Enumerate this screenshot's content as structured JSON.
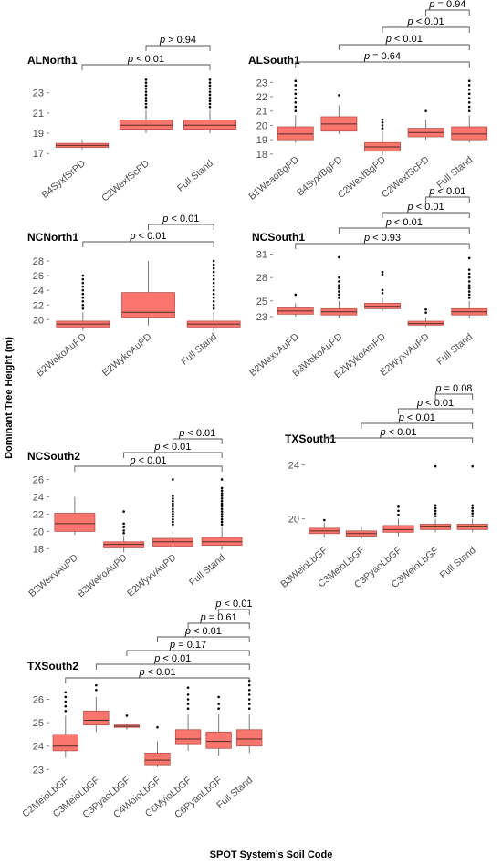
{
  "ylabel": "Dominant Tree Height (m)",
  "xlabel": "SPOT System’s Soil Code",
  "colors": {
    "box_fill": "#f8766d",
    "box_edge": "#b8524b",
    "whisker": "#7a7a7a",
    "outlier": "#000000",
    "bracket": "#555555"
  },
  "chart_data": [
    {
      "type": "box",
      "title": "ALNorth1",
      "ylim": [
        16.3,
        24.6
      ],
      "yticks": [
        17,
        19,
        21,
        23
      ],
      "categories": [
        "B4SyxfSrPD",
        "C2WexfScPD",
        "Full Stand"
      ],
      "boxes": [
        {
          "min": 17.4,
          "q1": 17.6,
          "median": 17.8,
          "q3": 18.0,
          "max": 18.4,
          "outliers": []
        },
        {
          "min": 19.0,
          "q1": 19.4,
          "median": 19.8,
          "q3": 20.3,
          "max": 21.3,
          "outliers": [
            21.6,
            21.9,
            22.2,
            22.5,
            22.8,
            23.1,
            23.4,
            23.7,
            24.0,
            24.3
          ]
        },
        {
          "min": 19.0,
          "q1": 19.4,
          "median": 19.8,
          "q3": 20.3,
          "max": 21.3,
          "outliers": [
            21.6,
            21.9,
            22.2,
            22.5,
            22.8,
            23.1,
            23.4,
            23.7,
            24.0,
            24.3
          ]
        }
      ],
      "comparisons": [
        {
          "from": 1,
          "to": 2,
          "label": "> 0.94"
        },
        {
          "from": 0,
          "to": 2,
          "label": "< 0.01"
        }
      ]
    },
    {
      "type": "box",
      "title": "ALSouth1",
      "ylim": [
        17.8,
        23.4
      ],
      "yticks": [
        18,
        19,
        20,
        21,
        22,
        23
      ],
      "categories": [
        "B1WeaoBgPD",
        "B4SyxfBgPD",
        "C2WexfBgPD",
        "C2WexfScPD",
        "Full Stand"
      ],
      "boxes": [
        {
          "min": 18.8,
          "q1": 19.0,
          "median": 19.4,
          "q3": 19.9,
          "max": 20.7,
          "outliers": [
            21.0,
            21.3,
            21.6,
            21.9,
            22.2,
            22.5,
            22.8,
            23.1
          ]
        },
        {
          "min": 19.4,
          "q1": 19.6,
          "median": 20.1,
          "q3": 20.6,
          "max": 21.4,
          "outliers": [
            22.1
          ]
        },
        {
          "min": 17.9,
          "q1": 18.2,
          "median": 18.5,
          "q3": 18.8,
          "max": 19.6,
          "outliers": [
            19.8,
            20.0,
            20.2,
            20.4
          ]
        },
        {
          "min": 19.0,
          "q1": 19.2,
          "median": 19.5,
          "q3": 19.8,
          "max": 20.4,
          "outliers": [
            21.0
          ]
        },
        {
          "min": 18.8,
          "q1": 19.0,
          "median": 19.4,
          "q3": 19.9,
          "max": 20.7,
          "outliers": [
            21.0,
            21.3,
            21.6,
            21.9,
            22.2,
            22.5,
            22.8,
            23.1
          ]
        }
      ],
      "comparisons": [
        {
          "from": 3,
          "to": 4,
          "label": "= 0.94"
        },
        {
          "from": 2,
          "to": 4,
          "label": "< 0.01"
        },
        {
          "from": 1,
          "to": 4,
          "label": "< 0.01"
        },
        {
          "from": 0,
          "to": 4,
          "label": "= 0.64"
        }
      ]
    },
    {
      "type": "box",
      "title": "NCNorth1",
      "ylim": [
        18.3,
        29.0
      ],
      "yticks": [
        20,
        22,
        24,
        26,
        28
      ],
      "categories": [
        "B2WekoAuPD",
        "E2WykoAuPD",
        "Full Stand"
      ],
      "boxes": [
        {
          "min": 18.5,
          "q1": 19.0,
          "median": 19.4,
          "q3": 19.8,
          "max": 21.0,
          "outliers": [
            21.5,
            22.0,
            22.5,
            23.0,
            23.5,
            24.0,
            24.5,
            25.0,
            25.5,
            26.0
          ]
        },
        {
          "min": 19.2,
          "q1": 20.3,
          "median": 21.0,
          "q3": 23.7,
          "max": 28.0,
          "outliers": []
        },
        {
          "min": 18.5,
          "q1": 19.0,
          "median": 19.4,
          "q3": 19.8,
          "max": 21.0,
          "outliers": [
            21.5,
            22.0,
            22.5,
            23.0,
            23.5,
            24.0,
            24.5,
            25.0,
            25.5,
            26.0,
            26.5,
            27.0,
            27.5,
            28.0
          ]
        }
      ],
      "comparisons": [
        {
          "from": 1,
          "to": 2,
          "label": "< 0.01"
        },
        {
          "from": 0,
          "to": 2,
          "label": "< 0.01"
        }
      ]
    },
    {
      "type": "box",
      "title": "NCSouth1",
      "ylim": [
        21.0,
        32.0
      ],
      "yticks": [
        23,
        25,
        28,
        31
      ],
      "categories": [
        "B2WexvAuPD",
        "B3WekoAuPD",
        "E2WykoAmPD",
        "E2WyxvAuPD",
        "Full Stand"
      ],
      "boxes": [
        {
          "min": 23.0,
          "q1": 23.3,
          "median": 23.7,
          "q3": 24.1,
          "max": 24.7,
          "outliers": [
            25.8
          ]
        },
        {
          "min": 22.8,
          "q1": 23.2,
          "median": 23.6,
          "q3": 24.0,
          "max": 25.0,
          "outliers": [
            25.4,
            25.8,
            26.2,
            26.6,
            27.0,
            27.5,
            28.0,
            30.6
          ]
        },
        {
          "min": 23.7,
          "q1": 24.0,
          "median": 24.3,
          "q3": 24.7,
          "max": 25.4,
          "outliers": [
            26.0,
            26.4,
            28.4,
            28.7
          ]
        },
        {
          "min": 21.7,
          "q1": 21.9,
          "median": 22.1,
          "q3": 22.4,
          "max": 22.9,
          "outliers": [
            23.5,
            23.9
          ]
        },
        {
          "min": 22.8,
          "q1": 23.2,
          "median": 23.6,
          "q3": 24.0,
          "max": 25.0,
          "outliers": [
            25.4,
            25.8,
            26.2,
            26.6,
            27.0,
            27.5,
            28.0,
            28.5,
            29.0,
            30.5
          ]
        }
      ],
      "comparisons": [
        {
          "from": 3,
          "to": 4,
          "label": "< 0.01"
        },
        {
          "from": 2,
          "to": 4,
          "label": "< 0.01"
        },
        {
          "from": 1,
          "to": 4,
          "label": "< 0.01"
        },
        {
          "from": 0,
          "to": 4,
          "label": "< 0.93"
        }
      ]
    },
    {
      "type": "box",
      "title": "NCSouth2",
      "ylim": [
        17.3,
        27.0
      ],
      "yticks": [
        18,
        20,
        22,
        24,
        26
      ],
      "categories": [
        "B2WexvAuPD",
        "B3WekoAuPD",
        "E2WyxvAuPD",
        "Full Stand"
      ],
      "boxes": [
        {
          "min": 19.6,
          "q1": 20.0,
          "median": 20.9,
          "q3": 22.1,
          "max": 24.0,
          "outliers": []
        },
        {
          "min": 17.6,
          "q1": 18.1,
          "median": 18.5,
          "q3": 18.8,
          "max": 19.5,
          "outliers": [
            19.8,
            20.1,
            20.5,
            20.9,
            22.3
          ]
        },
        {
          "min": 17.9,
          "q1": 18.3,
          "median": 18.8,
          "q3": 19.2,
          "max": 20.5,
          "outliers": [
            20.8,
            21.1,
            21.4,
            21.7,
            22.0,
            22.3,
            22.6,
            22.9,
            23.2,
            23.5,
            23.8,
            24.1,
            26.0
          ]
        },
        {
          "min": 17.9,
          "q1": 18.4,
          "median": 18.8,
          "q3": 19.3,
          "max": 20.5,
          "outliers": [
            20.8,
            21.1,
            21.4,
            21.7,
            22.0,
            22.3,
            22.6,
            22.9,
            23.2,
            23.5,
            23.8,
            24.1,
            24.4,
            24.7,
            25.0,
            26.0
          ]
        }
      ],
      "comparisons": [
        {
          "from": 2,
          "to": 3,
          "label": "< 0.01"
        },
        {
          "from": 1,
          "to": 3,
          "label": "< 0.01"
        },
        {
          "from": 0,
          "to": 3,
          "label": "< 0.01"
        }
      ]
    },
    {
      "type": "box",
      "title": "TXSouth1",
      "ylim": [
        18.0,
        25.0
      ],
      "yticks": [
        20,
        24
      ],
      "categories": [
        "B3WeioLbGF",
        "C3MeioLbGF",
        "C3PyaoLbGF",
        "C3WeioLbGF",
        "Full Stand"
      ],
      "boxes": [
        {
          "min": 18.6,
          "q1": 18.9,
          "median": 19.1,
          "q3": 19.3,
          "max": 19.7,
          "outliers": [
            19.9
          ]
        },
        {
          "min": 18.5,
          "q1": 18.7,
          "median": 18.9,
          "q3": 19.1,
          "max": 19.4,
          "outliers": []
        },
        {
          "min": 18.7,
          "q1": 19.0,
          "median": 19.2,
          "q3": 19.5,
          "max": 20.0,
          "outliers": [
            20.3,
            20.6,
            20.9
          ]
        },
        {
          "min": 19.0,
          "q1": 19.2,
          "median": 19.4,
          "q3": 19.6,
          "max": 20.0,
          "outliers": [
            20.2,
            20.4,
            20.6,
            20.8,
            21.0,
            23.9
          ]
        },
        {
          "min": 19.0,
          "q1": 19.2,
          "median": 19.4,
          "q3": 19.6,
          "max": 20.0,
          "outliers": [
            20.2,
            20.4,
            20.6,
            20.8,
            21.0,
            23.9
          ]
        }
      ],
      "comparisons": [
        {
          "from": 3,
          "to": 4,
          "label": "= 0.08"
        },
        {
          "from": 2,
          "to": 4,
          "label": "< 0.01"
        },
        {
          "from": 1,
          "to": 4,
          "label": "< 0.01"
        },
        {
          "from": 0,
          "to": 4,
          "label": "< 0.01"
        }
      ]
    },
    {
      "type": "box",
      "title": "TXSouth2",
      "ylim": [
        22.7,
        26.8
      ],
      "yticks": [
        23,
        24,
        25,
        26
      ],
      "categories": [
        "C2MeioLbGF",
        "C3MeioLbGF",
        "C3PyaoLbGF",
        "C4WoioLbGF",
        "C6MyioLbGF",
        "C6PyanLbGF",
        "Full Stand"
      ],
      "boxes": [
        {
          "min": 23.5,
          "q1": 23.8,
          "median": 24.0,
          "q3": 24.5,
          "max": 25.3,
          "outliers": [
            25.5,
            25.7,
            25.9,
            26.1,
            26.3
          ]
        },
        {
          "min": 24.6,
          "q1": 24.9,
          "median": 25.1,
          "q3": 25.5,
          "max": 26.1,
          "outliers": [
            26.4,
            26.6
          ]
        },
        {
          "min": 24.7,
          "q1": 24.8,
          "median": 24.85,
          "q3": 24.9,
          "max": 24.95,
          "outliers": [
            25.3
          ]
        },
        {
          "min": 23.1,
          "q1": 23.2,
          "median": 23.4,
          "q3": 23.7,
          "max": 24.2,
          "outliers": [
            24.8
          ]
        },
        {
          "min": 23.8,
          "q1": 24.1,
          "median": 24.3,
          "q3": 24.7,
          "max": 25.4,
          "outliers": [
            25.6,
            25.8,
            26.0,
            26.2,
            26.5
          ]
        },
        {
          "min": 23.6,
          "q1": 23.9,
          "median": 24.2,
          "q3": 24.6,
          "max": 25.4,
          "outliers": [
            25.6,
            25.8,
            26.1
          ]
        },
        {
          "min": 23.7,
          "q1": 24.0,
          "median": 24.3,
          "q3": 24.7,
          "max": 25.4,
          "outliers": [
            25.6,
            25.8,
            26.0,
            26.2,
            26.4,
            26.6,
            26.8
          ]
        }
      ],
      "comparisons": [
        {
          "from": 5,
          "to": 6,
          "label": "< 0.01"
        },
        {
          "from": 4,
          "to": 6,
          "label": "= 0.61"
        },
        {
          "from": 3,
          "to": 6,
          "label": "< 0.01"
        },
        {
          "from": 2,
          "to": 6,
          "label": "= 0.17"
        },
        {
          "from": 1,
          "to": 6,
          "label": "< 0.01"
        },
        {
          "from": 0,
          "to": 6,
          "label": "< 0.01"
        }
      ]
    }
  ]
}
